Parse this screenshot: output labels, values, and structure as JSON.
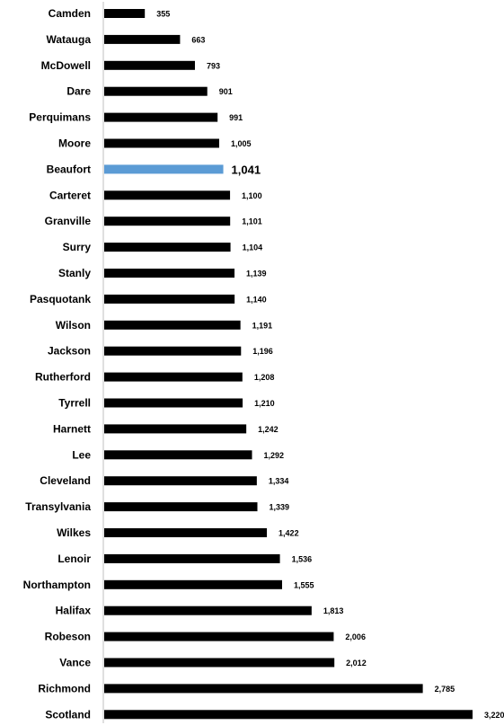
{
  "chart_data": {
    "type": "bar",
    "orientation": "horizontal",
    "categories": [
      "Camden",
      "Watauga",
      "McDowell",
      "Dare",
      "Perquimans",
      "Moore",
      "Beaufort",
      "Carteret",
      "Granville",
      "Surry",
      "Stanly",
      "Pasquotank",
      "Wilson",
      "Jackson",
      "Rutherford",
      "Tyrrell",
      "Harnett",
      "Lee",
      "Cleveland",
      "Transylvania",
      "Wilkes",
      "Lenoir",
      "Northampton",
      "Halifax",
      "Robeson",
      "Vance",
      "Richmond",
      "Scotland"
    ],
    "values": [
      355,
      663,
      793,
      901,
      991,
      1005,
      1041,
      1100,
      1101,
      1104,
      1139,
      1140,
      1191,
      1196,
      1208,
      1210,
      1242,
      1292,
      1334,
      1339,
      1422,
      1536,
      1555,
      1813,
      2006,
      2012,
      2785,
      3220
    ],
    "value_labels": [
      "355",
      "663",
      "793",
      "901",
      "991",
      "1,005",
      "1,041",
      "1,100",
      "1,101",
      "1,104",
      "1,139",
      "1,140",
      "1,191",
      "1,196",
      "1,208",
      "1,210",
      "1,242",
      "1,292",
      "1,334",
      "1,339",
      "1,422",
      "1,536",
      "1,555",
      "1,813",
      "2,006",
      "2,012",
      "2,785",
      "3,220"
    ],
    "highlight": "Beaufort",
    "xlim": [
      0,
      3220
    ],
    "grid": false,
    "legend": "none",
    "title": "",
    "xlabel": "",
    "ylabel": ""
  },
  "colors": {
    "bar": "#000000",
    "highlight": "#5b9bd5",
    "axis": "#bfbfbf"
  }
}
